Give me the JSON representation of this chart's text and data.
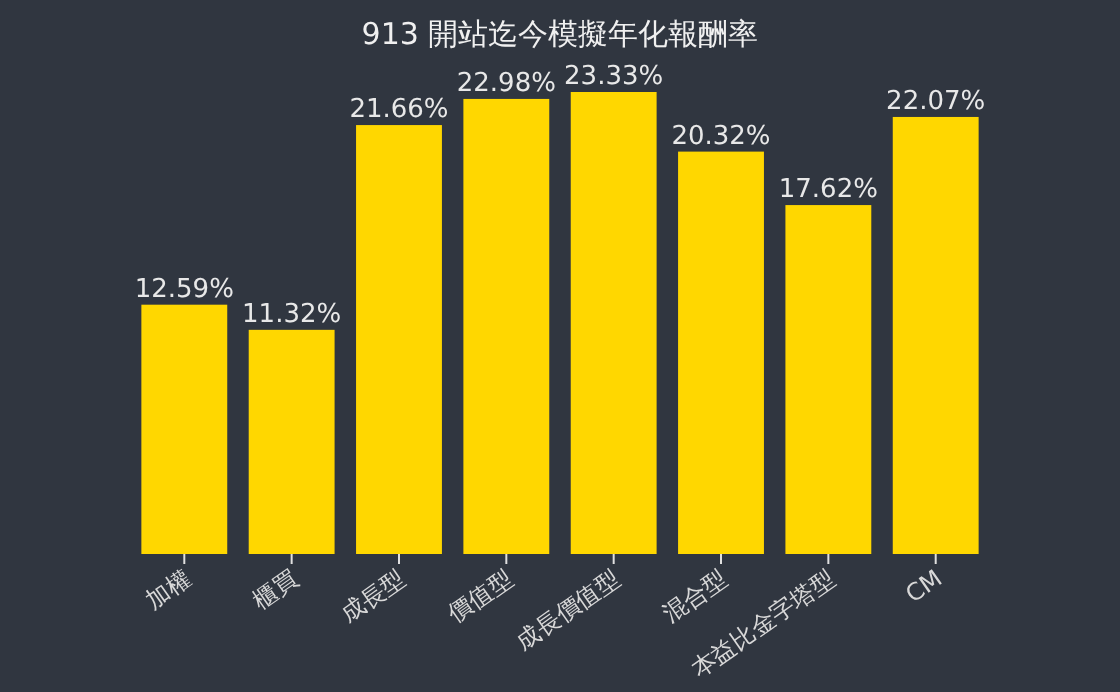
{
  "chart_data": {
    "type": "bar",
    "title": "913 開站迄今模擬年化報酬率",
    "categories": [
      "加權",
      "櫃買",
      "成長型",
      "價值型",
      "成長價值型",
      "混合型",
      "本益比金字塔型",
      "CM"
    ],
    "values": [
      12.59,
      11.32,
      21.66,
      22.98,
      23.33,
      20.32,
      17.62,
      22.07
    ],
    "value_labels": [
      "12.59%",
      "11.32%",
      "21.66%",
      "22.98%",
      "23.33%",
      "20.32%",
      "17.62%",
      "22.07%"
    ],
    "color": "#ffd700"
  }
}
